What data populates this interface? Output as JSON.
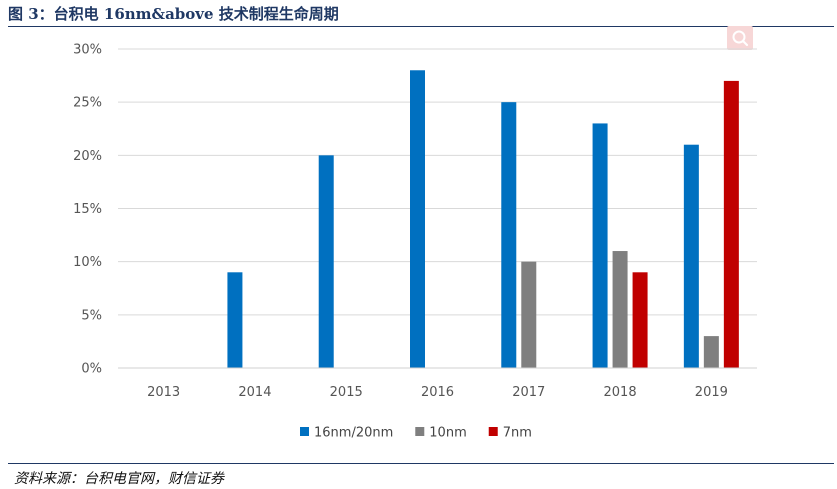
{
  "header": {
    "title": "图 3：台积电 16nm&above 技术制程生命周期"
  },
  "footer": {
    "source": "资料来源：台积电官网，财信证券"
  },
  "colors": {
    "rule": "#1f3864",
    "search_button": "#f7d7d7"
  },
  "icons": {
    "search": "search-icon"
  },
  "chart_data": {
    "type": "bar",
    "title": "",
    "xlabel": "",
    "ylabel": "",
    "categories": [
      "2013",
      "2014",
      "2015",
      "2016",
      "2017",
      "2018",
      "2019"
    ],
    "series": [
      {
        "name": "16nm/20nm",
        "color": "#0070c0",
        "values": [
          0,
          9,
          20,
          28,
          25,
          23,
          21
        ]
      },
      {
        "name": "10nm",
        "color": "#7f7f7f",
        "values": [
          0,
          0,
          0,
          0,
          10,
          11,
          3
        ]
      },
      {
        "name": "7nm",
        "color": "#c00000",
        "values": [
          0,
          0,
          0,
          0,
          0,
          9,
          27
        ]
      }
    ],
    "ylim": [
      0,
      30
    ],
    "yticks": [
      "0%",
      "5%",
      "10%",
      "15%",
      "20%",
      "25%",
      "30%"
    ],
    "grid": true,
    "legend": "bottom"
  }
}
